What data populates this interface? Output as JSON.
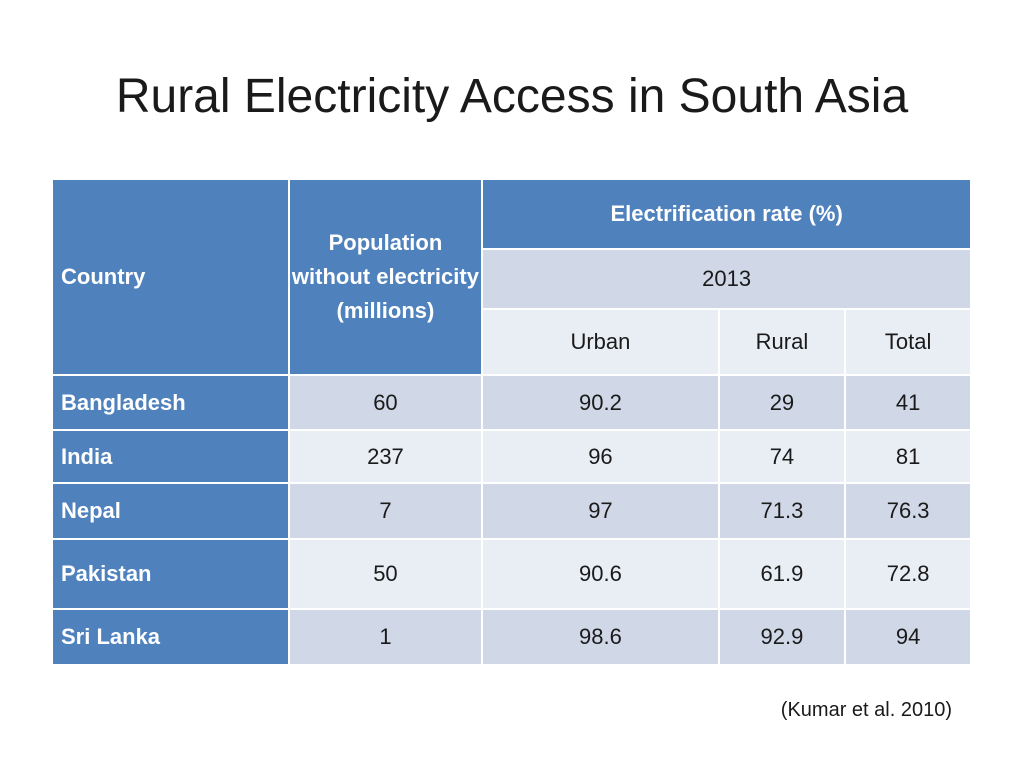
{
  "title": "Rural Electricity Access in South Asia",
  "table": {
    "header": {
      "country": "Country",
      "population": "Population without electricity (millions)",
      "electrification": "Electrification rate (%)",
      "year": "2013",
      "urban": "Urban",
      "rural": "Rural",
      "total": "Total"
    },
    "rows": [
      {
        "country": "Bangladesh",
        "population": "60",
        "urban": "90.2",
        "rural": "29",
        "total": "41"
      },
      {
        "country": "India",
        "population": "237",
        "urban": "96",
        "rural": "74",
        "total": "81"
      },
      {
        "country": "Nepal",
        "population": "7",
        "urban": "97",
        "rural": "71.3",
        "total": "76.3"
      },
      {
        "country": "Pakistan",
        "population": "50",
        "urban": "90.6",
        "rural": "61.9",
        "total": "72.8"
      },
      {
        "country": "Sri Lanka",
        "population": "1",
        "urban": "98.6",
        "rural": "92.9",
        "total": "94"
      }
    ]
  },
  "citation": "(Kumar et al. 2010)",
  "colors": {
    "header_blue": "#4f81bd",
    "band_light": "#d0d8e8",
    "band_lighter": "#e9edf4"
  }
}
